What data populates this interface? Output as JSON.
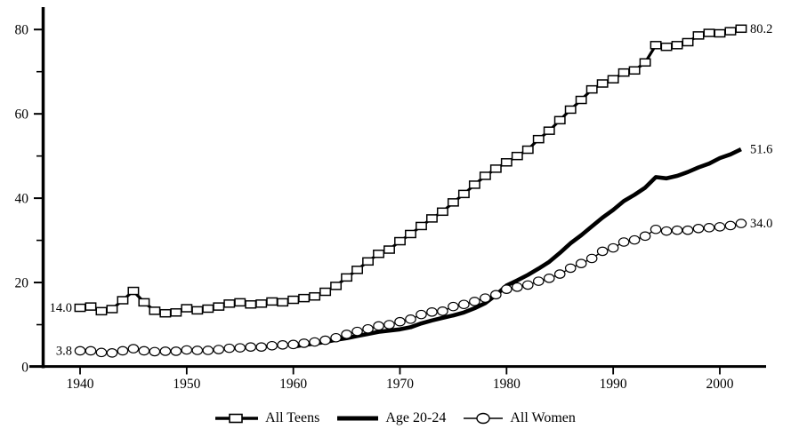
{
  "chart_data": {
    "type": "line",
    "x_axis": {
      "ticks": [
        1940,
        1950,
        1960,
        1970,
        1980,
        1990,
        2000
      ],
      "tick_labels": [
        "1940",
        "1950",
        "1960",
        "1970",
        "1980",
        "1990",
        "2000"
      ],
      "range": [
        1936.5,
        2004.3
      ],
      "grid": false
    },
    "y_axis": {
      "major_ticks": [
        0,
        20,
        40,
        60,
        80
      ],
      "major_labels": [
        "0",
        "20",
        "40",
        "60",
        "80"
      ],
      "minor_ticks": [
        10,
        30,
        50,
        70
      ],
      "range": [
        0,
        85
      ],
      "grid": false
    },
    "series": [
      {
        "id": "age-20-24",
        "name": "Age 20-24",
        "style": "thick-line",
        "marker": "none",
        "start_year": 1960,
        "end_year": 2002,
        "values": [
          4.8,
          5.2,
          5.5,
          5.9,
          6.4,
          6.8,
          7.3,
          7.8,
          8.3,
          8.6,
          8.9,
          9.4,
          10.3,
          11.0,
          11.6,
          12.2,
          12.9,
          13.9,
          15.1,
          17.0,
          19.3,
          20.5,
          21.8,
          23.3,
          24.9,
          27.0,
          29.3,
          31.2,
          33.3,
          35.4,
          37.2,
          39.3,
          40.8,
          42.5,
          45.0,
          44.7,
          45.3,
          46.2,
          47.3,
          48.2,
          49.5,
          50.4,
          51.6
        ]
      },
      {
        "id": "all-women",
        "name": "All Women",
        "style": "thin-line",
        "marker": "circle",
        "start_year": 1940,
        "end_year": 2002,
        "values": [
          3.8,
          3.8,
          3.4,
          3.3,
          3.8,
          4.3,
          3.8,
          3.6,
          3.7,
          3.7,
          4.0,
          3.9,
          3.9,
          4.1,
          4.4,
          4.5,
          4.7,
          4.7,
          5.0,
          5.2,
          5.3,
          5.6,
          5.9,
          6.3,
          6.9,
          7.7,
          8.4,
          9.0,
          9.7,
          10.0,
          10.7,
          11.3,
          12.4,
          13.0,
          13.2,
          14.3,
          14.8,
          15.5,
          16.3,
          17.1,
          18.4,
          18.9,
          19.4,
          20.3,
          21.0,
          22.0,
          23.4,
          24.5,
          25.7,
          27.4,
          28.2,
          29.6,
          30.1,
          31.0,
          32.6,
          32.2,
          32.4,
          32.4,
          32.8,
          33.0,
          33.2,
          33.5,
          34.0
        ]
      },
      {
        "id": "all-teens",
        "name": "All Teens",
        "style": "medium-line",
        "marker": "square",
        "start_year": 1940,
        "end_year": 2002,
        "values": [
          14.0,
          14.3,
          13.2,
          13.7,
          15.8,
          18.0,
          15.3,
          13.3,
          12.7,
          12.9,
          13.9,
          13.4,
          13.8,
          14.3,
          15.0,
          15.3,
          14.8,
          15.0,
          15.5,
          15.3,
          15.9,
          16.3,
          16.7,
          17.8,
          19.2,
          21.2,
          23.0,
          25.0,
          26.8,
          27.8,
          29.8,
          31.5,
          33.4,
          35.2,
          36.8,
          39.0,
          41.0,
          43.2,
          45.3,
          47.0,
          48.5,
          50.0,
          51.5,
          54.0,
          56.0,
          58.5,
          61.0,
          63.3,
          65.8,
          67.2,
          68.2,
          69.8,
          70.3,
          72.2,
          76.3,
          75.9,
          76.3,
          77.0,
          78.6,
          79.2,
          79.1,
          79.6,
          80.2
        ]
      }
    ],
    "annotations": [
      {
        "text": "14.0",
        "year": 1940,
        "value": 14.0,
        "side": "left"
      },
      {
        "text": "3.8",
        "year": 1940,
        "value": 3.8,
        "side": "left"
      },
      {
        "text": "80.2",
        "year": 2002,
        "value": 80.2,
        "side": "right"
      },
      {
        "text": "51.6",
        "year": 2002,
        "value": 51.6,
        "side": "right"
      },
      {
        "text": "34.0",
        "year": 2002,
        "value": 34.0,
        "side": "right"
      }
    ],
    "legend": {
      "position": "bottom-center",
      "items": [
        {
          "label": "All Teens",
          "marker": "square-line"
        },
        {
          "label": "Age 20-24",
          "marker": "thick-line"
        },
        {
          "label": "All Women",
          "marker": "circle-line"
        }
      ]
    },
    "colors": {
      "line": "#000000",
      "marker_fill": "#ffffff",
      "background": "#ffffff"
    }
  }
}
